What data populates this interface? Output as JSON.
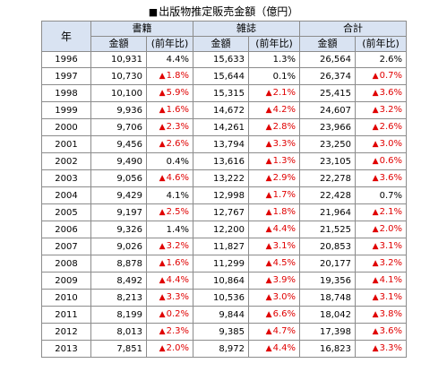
{
  "title": "出版物推定販売金額（億円）",
  "title_mark": "■",
  "headers": {
    "year": "年",
    "groups": [
      "書籍",
      "雑誌",
      "合計"
    ],
    "sub_amount": "金額",
    "sub_yoy": "(前年比)"
  },
  "down_marker": "▲",
  "colors": {
    "header_bg": "#d9e3f2",
    "negative": "#e00000",
    "border": "#8c8c8c"
  },
  "rows": [
    {
      "year": "1996",
      "books": "10,931",
      "books_yoy": "4.4%",
      "books_neg": false,
      "mag": "15,633",
      "mag_yoy": "1.3%",
      "mag_neg": false,
      "total": "26,564",
      "total_yoy": "2.6%",
      "total_neg": false
    },
    {
      "year": "1997",
      "books": "10,730",
      "books_yoy": "1.8%",
      "books_neg": true,
      "mag": "15,644",
      "mag_yoy": "0.1%",
      "mag_neg": false,
      "total": "26,374",
      "total_yoy": "0.7%",
      "total_neg": true
    },
    {
      "year": "1998",
      "books": "10,100",
      "books_yoy": "5.9%",
      "books_neg": true,
      "mag": "15,315",
      "mag_yoy": "2.1%",
      "mag_neg": true,
      "total": "25,415",
      "total_yoy": "3.6%",
      "total_neg": true
    },
    {
      "year": "1999",
      "books": "9,936",
      "books_yoy": "1.6%",
      "books_neg": true,
      "mag": "14,672",
      "mag_yoy": "4.2%",
      "mag_neg": true,
      "total": "24,607",
      "total_yoy": "3.2%",
      "total_neg": true
    },
    {
      "year": "2000",
      "books": "9,706",
      "books_yoy": "2.3%",
      "books_neg": true,
      "mag": "14,261",
      "mag_yoy": "2.8%",
      "mag_neg": true,
      "total": "23,966",
      "total_yoy": "2.6%",
      "total_neg": true
    },
    {
      "year": "2001",
      "books": "9,456",
      "books_yoy": "2.6%",
      "books_neg": true,
      "mag": "13,794",
      "mag_yoy": "3.3%",
      "mag_neg": true,
      "total": "23,250",
      "total_yoy": "3.0%",
      "total_neg": true
    },
    {
      "year": "2002",
      "books": "9,490",
      "books_yoy": "0.4%",
      "books_neg": false,
      "mag": "13,616",
      "mag_yoy": "1.3%",
      "mag_neg": true,
      "total": "23,105",
      "total_yoy": "0.6%",
      "total_neg": true
    },
    {
      "year": "2003",
      "books": "9,056",
      "books_yoy": "4.6%",
      "books_neg": true,
      "mag": "13,222",
      "mag_yoy": "2.9%",
      "mag_neg": true,
      "total": "22,278",
      "total_yoy": "3.6%",
      "total_neg": true
    },
    {
      "year": "2004",
      "books": "9,429",
      "books_yoy": "4.1%",
      "books_neg": false,
      "mag": "12,998",
      "mag_yoy": "1.7%",
      "mag_neg": true,
      "total": "22,428",
      "total_yoy": "0.7%",
      "total_neg": false
    },
    {
      "year": "2005",
      "books": "9,197",
      "books_yoy": "2.5%",
      "books_neg": true,
      "mag": "12,767",
      "mag_yoy": "1.8%",
      "mag_neg": true,
      "total": "21,964",
      "total_yoy": "2.1%",
      "total_neg": true
    },
    {
      "year": "2006",
      "books": "9,326",
      "books_yoy": "1.4%",
      "books_neg": false,
      "mag": "12,200",
      "mag_yoy": "4.4%",
      "mag_neg": true,
      "total": "21,525",
      "total_yoy": "2.0%",
      "total_neg": true
    },
    {
      "year": "2007",
      "books": "9,026",
      "books_yoy": "3.2%",
      "books_neg": true,
      "mag": "11,827",
      "mag_yoy": "3.1%",
      "mag_neg": true,
      "total": "20,853",
      "total_yoy": "3.1%",
      "total_neg": true
    },
    {
      "year": "2008",
      "books": "8,878",
      "books_yoy": "1.6%",
      "books_neg": true,
      "mag": "11,299",
      "mag_yoy": "4.5%",
      "mag_neg": true,
      "total": "20,177",
      "total_yoy": "3.2%",
      "total_neg": true
    },
    {
      "year": "2009",
      "books": "8,492",
      "books_yoy": "4.4%",
      "books_neg": true,
      "mag": "10,864",
      "mag_yoy": "3.9%",
      "mag_neg": true,
      "total": "19,356",
      "total_yoy": "4.1%",
      "total_neg": true
    },
    {
      "year": "2010",
      "books": "8,213",
      "books_yoy": "3.3%",
      "books_neg": true,
      "mag": "10,536",
      "mag_yoy": "3.0%",
      "mag_neg": true,
      "total": "18,748",
      "total_yoy": "3.1%",
      "total_neg": true
    },
    {
      "year": "2011",
      "books": "8,199",
      "books_yoy": "0.2%",
      "books_neg": true,
      "mag": "9,844",
      "mag_yoy": "6.6%",
      "mag_neg": true,
      "total": "18,042",
      "total_yoy": "3.8%",
      "total_neg": true
    },
    {
      "year": "2012",
      "books": "8,013",
      "books_yoy": "2.3%",
      "books_neg": true,
      "mag": "9,385",
      "mag_yoy": "4.7%",
      "mag_neg": true,
      "total": "17,398",
      "total_yoy": "3.6%",
      "total_neg": true
    },
    {
      "year": "2013",
      "books": "7,851",
      "books_yoy": "2.0%",
      "books_neg": true,
      "mag": "8,972",
      "mag_yoy": "4.4%",
      "mag_neg": true,
      "total": "16,823",
      "total_yoy": "3.3%",
      "total_neg": true
    }
  ]
}
